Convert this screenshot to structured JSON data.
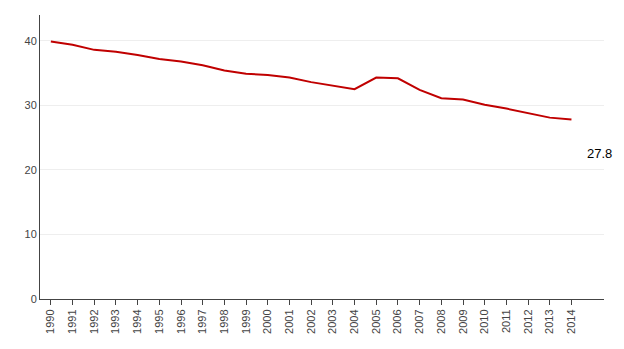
{
  "chart_data": {
    "type": "line",
    "x": [
      1990,
      1991,
      1992,
      1993,
      1994,
      1995,
      1996,
      1997,
      1998,
      1999,
      2000,
      2001,
      2002,
      2003,
      2004,
      2005,
      2006,
      2007,
      2008,
      2009,
      2010,
      2011,
      2012,
      2013,
      2014
    ],
    "values": [
      39.9,
      39.4,
      38.6,
      38.3,
      37.8,
      37.2,
      36.8,
      36.2,
      35.4,
      34.9,
      34.7,
      34.3,
      33.6,
      33.1,
      32.5,
      34.3,
      34.2,
      32.4,
      31.1,
      30.9,
      30.1,
      29.5,
      28.8,
      28.1,
      27.8
    ],
    "color": "#c00000",
    "xlim": [
      1989.5,
      2015.5
    ],
    "xticks": [
      1990,
      1991,
      1992,
      1993,
      1994,
      1995,
      1996,
      1997,
      1998,
      1999,
      2000,
      2001,
      2002,
      2003,
      2004,
      2005,
      2006,
      2007,
      2008,
      2009,
      2010,
      2011,
      2012,
      2013,
      2014
    ],
    "ylim": [
      0,
      44
    ],
    "yticks": [
      0,
      10,
      20,
      30,
      40
    ],
    "grid": "y",
    "annotations": [
      {
        "x": 2014,
        "y": 27.8,
        "text": "27.8"
      }
    ]
  }
}
